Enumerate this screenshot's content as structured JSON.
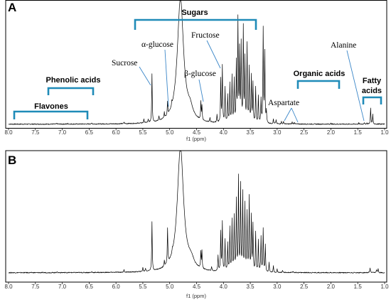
{
  "chart_data": [
    {
      "type": "line",
      "panel": "A",
      "xlabel": "f1 (ppm)",
      "xlim": [
        8.0,
        1.0
      ],
      "x_reversed": true,
      "x_ticks": [
        "8.0",
        "7.5",
        "7.0",
        "6.5",
        "6.0",
        "5.5",
        "5.0",
        "4.5",
        "4.0",
        "3.5",
        "3.0",
        "2.5",
        "2.0",
        "1.5",
        "1.0"
      ],
      "baseline": 0.02,
      "peaks": [
        {
          "ppm": 7.1,
          "h": 0.01
        },
        {
          "ppm": 6.9,
          "h": 0.008
        },
        {
          "ppm": 6.45,
          "h": 0.012
        },
        {
          "ppm": 5.85,
          "h": 0.02
        },
        {
          "ppm": 5.48,
          "h": 0.045
        },
        {
          "ppm": 5.4,
          "h": 0.035
        },
        {
          "ppm": 5.33,
          "h": 0.62
        },
        {
          "ppm": 5.2,
          "h": 0.06
        },
        {
          "ppm": 5.1,
          "h": 0.07
        },
        {
          "ppm": 5.04,
          "h": 0.17
        },
        {
          "ppm": 4.96,
          "h": 0.05
        },
        {
          "ppm": 4.8,
          "h": 1.6,
          "w": 0.07
        },
        {
          "ppm": 4.62,
          "h": 0.12,
          "w": 0.06
        },
        {
          "ppm": 4.42,
          "h": 0.22
        },
        {
          "ppm": 4.4,
          "h": 0.18
        },
        {
          "ppm": 4.25,
          "h": 0.05
        },
        {
          "ppm": 4.12,
          "h": 0.1
        },
        {
          "ppm": 4.05,
          "h": 0.55
        },
        {
          "ppm": 4.02,
          "h": 0.72
        },
        {
          "ppm": 3.97,
          "h": 0.45
        },
        {
          "ppm": 3.92,
          "h": 0.35
        },
        {
          "ppm": 3.88,
          "h": 0.5
        },
        {
          "ppm": 3.84,
          "h": 0.6
        },
        {
          "ppm": 3.8,
          "h": 0.55
        },
        {
          "ppm": 3.76,
          "h": 0.75
        },
        {
          "ppm": 3.73,
          "h": 1.3
        },
        {
          "ppm": 3.7,
          "h": 0.9
        },
        {
          "ppm": 3.67,
          "h": 1.0
        },
        {
          "ppm": 3.63,
          "h": 1.2
        },
        {
          "ppm": 3.6,
          "h": 0.8
        },
        {
          "ppm": 3.56,
          "h": 1.0
        },
        {
          "ppm": 3.52,
          "h": 0.7
        },
        {
          "ppm": 3.48,
          "h": 0.6
        },
        {
          "ppm": 3.45,
          "h": 0.5
        },
        {
          "ppm": 3.4,
          "h": 0.45
        },
        {
          "ppm": 3.35,
          "h": 0.35
        },
        {
          "ppm": 3.3,
          "h": 0.3
        },
        {
          "ppm": 3.26,
          "h": 1.2
        },
        {
          "ppm": 3.23,
          "h": 0.9
        },
        {
          "ppm": 3.2,
          "h": 0.15
        },
        {
          "ppm": 3.07,
          "h": 0.06
        },
        {
          "ppm": 3.02,
          "h": 0.05
        },
        {
          "ppm": 2.92,
          "h": 0.03
        },
        {
          "ppm": 2.88,
          "h": 0.03
        },
        {
          "ppm": 2.72,
          "h": 0.025
        },
        {
          "ppm": 2.68,
          "h": 0.025
        },
        {
          "ppm": 2.0,
          "h": 0.01
        },
        {
          "ppm": 1.48,
          "h": 0.015
        },
        {
          "ppm": 1.38,
          "h": 0.02
        },
        {
          "ppm": 1.33,
          "h": 0.015
        },
        {
          "ppm": 1.26,
          "h": 0.2
        },
        {
          "ppm": 1.22,
          "h": 0.12
        },
        {
          "ppm": 1.1,
          "h": 0.01
        }
      ],
      "group_labels": [
        {
          "label": "Flavones",
          "from": 7.85,
          "to": 6.55
        },
        {
          "label": "Phenolic acids",
          "from": 7.25,
          "to": 6.45
        },
        {
          "label": "Sugars",
          "from": 5.65,
          "to": 3.45
        },
        {
          "label": "Organic acids",
          "from": 2.6,
          "to": 1.85
        },
        {
          "label": "Fatty acids",
          "from": 1.35,
          "to": 1.05
        }
      ],
      "annotations": [
        "Sucrose",
        "α-glucose",
        "Fructose",
        "β-glucose",
        "Aspartate",
        "Alanine"
      ]
    },
    {
      "type": "line",
      "panel": "B",
      "xlabel": "f1 (ppm)",
      "xlim": [
        8.0,
        1.0
      ],
      "x_reversed": true,
      "x_ticks": [
        "8.0",
        "7.5",
        "7.0",
        "6.5",
        "6.0",
        "5.5",
        "5.0",
        "4.5",
        "4.0",
        "3.5",
        "3.0",
        "2.5",
        "2.0",
        "1.5",
        "1.0"
      ],
      "baseline": 0.02,
      "peaks": [
        {
          "ppm": 7.1,
          "h": 0.01
        },
        {
          "ppm": 6.45,
          "h": 0.01
        },
        {
          "ppm": 5.85,
          "h": 0.03
        },
        {
          "ppm": 5.5,
          "h": 0.05
        },
        {
          "ppm": 5.45,
          "h": 0.04
        },
        {
          "ppm": 5.33,
          "h": 0.62
        },
        {
          "ppm": 5.1,
          "h": 0.08
        },
        {
          "ppm": 5.04,
          "h": 0.45
        },
        {
          "ppm": 4.95,
          "h": 0.05
        },
        {
          "ppm": 4.8,
          "h": 1.6,
          "w": 0.07
        },
        {
          "ppm": 4.6,
          "h": 0.1,
          "w": 0.06
        },
        {
          "ppm": 4.42,
          "h": 0.2
        },
        {
          "ppm": 4.4,
          "h": 0.22
        },
        {
          "ppm": 4.22,
          "h": 0.05
        },
        {
          "ppm": 4.1,
          "h": 0.2
        },
        {
          "ppm": 4.05,
          "h": 0.5
        },
        {
          "ppm": 4.02,
          "h": 0.62
        },
        {
          "ppm": 3.97,
          "h": 0.4
        },
        {
          "ppm": 3.92,
          "h": 0.35
        },
        {
          "ppm": 3.88,
          "h": 0.55
        },
        {
          "ppm": 3.84,
          "h": 0.65
        },
        {
          "ppm": 3.8,
          "h": 0.7
        },
        {
          "ppm": 3.76,
          "h": 0.9
        },
        {
          "ppm": 3.72,
          "h": 1.2
        },
        {
          "ppm": 3.68,
          "h": 1.1
        },
        {
          "ppm": 3.64,
          "h": 1.0
        },
        {
          "ppm": 3.6,
          "h": 0.85
        },
        {
          "ppm": 3.56,
          "h": 0.75
        },
        {
          "ppm": 3.52,
          "h": 0.95
        },
        {
          "ppm": 3.48,
          "h": 0.7
        },
        {
          "ppm": 3.45,
          "h": 0.6
        },
        {
          "ppm": 3.4,
          "h": 0.5
        },
        {
          "ppm": 3.35,
          "h": 0.4
        },
        {
          "ppm": 3.3,
          "h": 0.45
        },
        {
          "ppm": 3.26,
          "h": 0.55
        },
        {
          "ppm": 3.22,
          "h": 0.35
        },
        {
          "ppm": 3.15,
          "h": 0.12
        },
        {
          "ppm": 3.07,
          "h": 0.08
        },
        {
          "ppm": 3.0,
          "h": 0.04
        },
        {
          "ppm": 2.9,
          "h": 0.02
        },
        {
          "ppm": 2.7,
          "h": 0.015
        },
        {
          "ppm": 1.27,
          "h": 0.06
        },
        {
          "ppm": 1.15,
          "h": 0.04
        },
        {
          "ppm": 1.12,
          "h": 0.05
        }
      ]
    }
  ]
}
